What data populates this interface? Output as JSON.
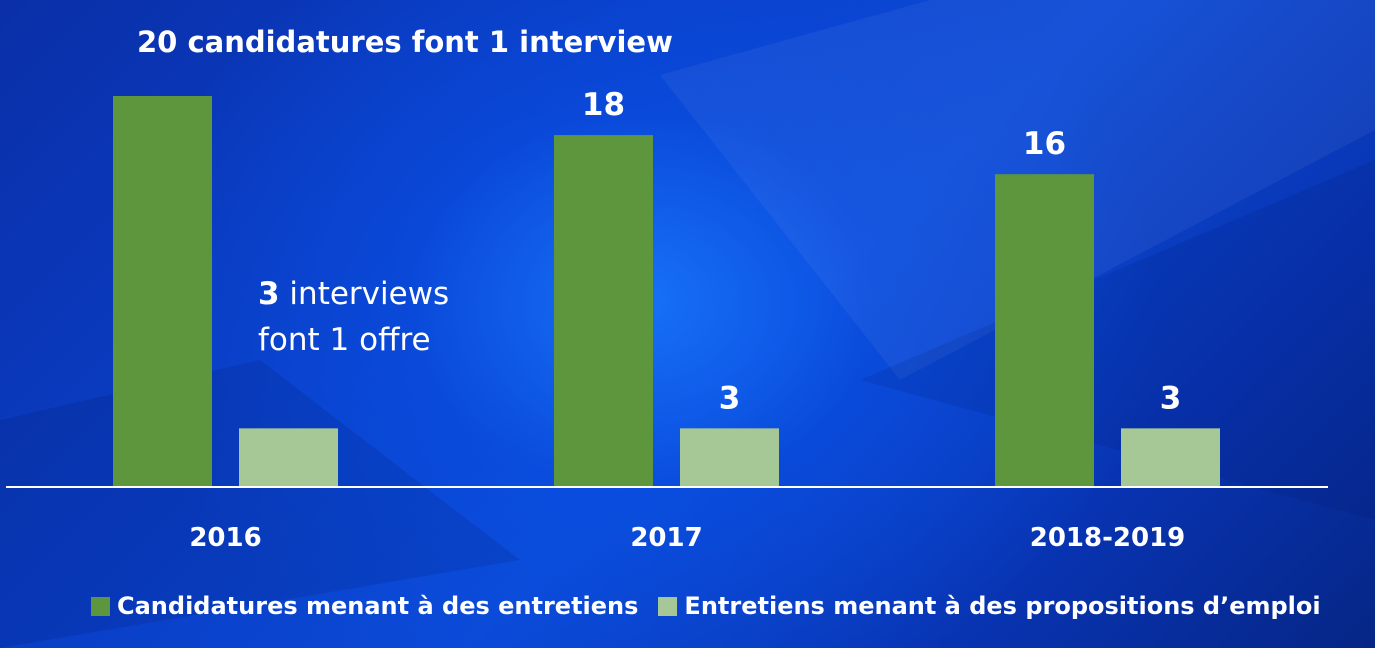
{
  "chart_data": {
    "type": "bar",
    "title": "20 candidatures font 1 interview",
    "categories": [
      "2016",
      "2017",
      "2018-2019"
    ],
    "series": [
      {
        "name": "Candidatures menant à des entretiens",
        "values": [
          20,
          18,
          16
        ],
        "color": "#5e963e",
        "data_labels": [
          "",
          "18",
          "16"
        ]
      },
      {
        "name": "Entretiens menant à des propositions d’emploi",
        "values": [
          3,
          3,
          3
        ],
        "color": "#a6c796",
        "data_labels": [
          "",
          "3",
          "3"
        ]
      }
    ],
    "annotation": {
      "bold": "3",
      "line1_rest": " interviews",
      "line2": "font 1 offre"
    },
    "ylim": [
      0,
      20
    ],
    "grid": false,
    "legend_position": "bottom"
  }
}
